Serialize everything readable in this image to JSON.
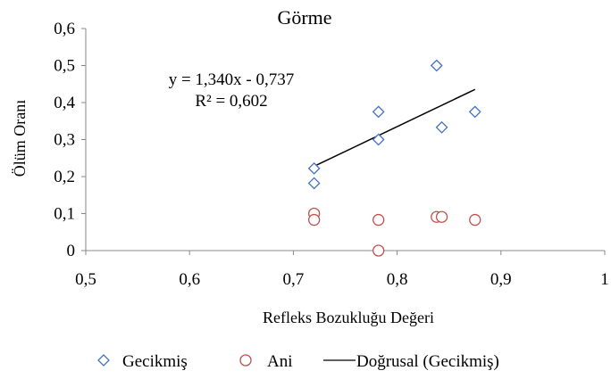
{
  "chart_data": {
    "type": "scatter",
    "title": "Görme",
    "xlabel": "Refleks Bozukluğu Değeri",
    "ylabel": "Ölüm Oranı",
    "xlim": [
      0.5,
      1.0
    ],
    "ylim": [
      0,
      0.6
    ],
    "x_ticks": [
      "0,5",
      "0,6",
      "0,7",
      "0,8",
      "0,9",
      "1"
    ],
    "y_ticks": [
      "0",
      "0,1",
      "0,2",
      "0,3",
      "0,4",
      "0,5",
      "0,6"
    ],
    "grid": false,
    "legend_position": "bottom",
    "series": [
      {
        "name": "Gecikmiş",
        "marker": "diamond",
        "color": "#4472C4",
        "points": [
          {
            "x": 0.72,
            "y": 0.222
          },
          {
            "x": 0.72,
            "y": 0.182
          },
          {
            "x": 0.782,
            "y": 0.375
          },
          {
            "x": 0.782,
            "y": 0.3
          },
          {
            "x": 0.838,
            "y": 0.5
          },
          {
            "x": 0.843,
            "y": 0.333
          },
          {
            "x": 0.875,
            "y": 0.375
          }
        ]
      },
      {
        "name": "Ani",
        "marker": "circle",
        "color": "#C0504D",
        "points": [
          {
            "x": 0.72,
            "y": 0.1
          },
          {
            "x": 0.72,
            "y": 0.083
          },
          {
            "x": 0.782,
            "y": 0.083
          },
          {
            "x": 0.782,
            "y": 0.0
          },
          {
            "x": 0.838,
            "y": 0.091
          },
          {
            "x": 0.843,
            "y": 0.091
          },
          {
            "x": 0.875,
            "y": 0.083
          }
        ]
      }
    ],
    "trendline": {
      "name": "Doğrusal (Gecikmiş)",
      "color": "#000000",
      "slope": 1.34,
      "intercept": -0.737,
      "x_range": [
        0.72,
        0.875
      ],
      "equation_label": "y = 1,340x - 0,737",
      "r2_label": "R² = 0,602"
    }
  }
}
